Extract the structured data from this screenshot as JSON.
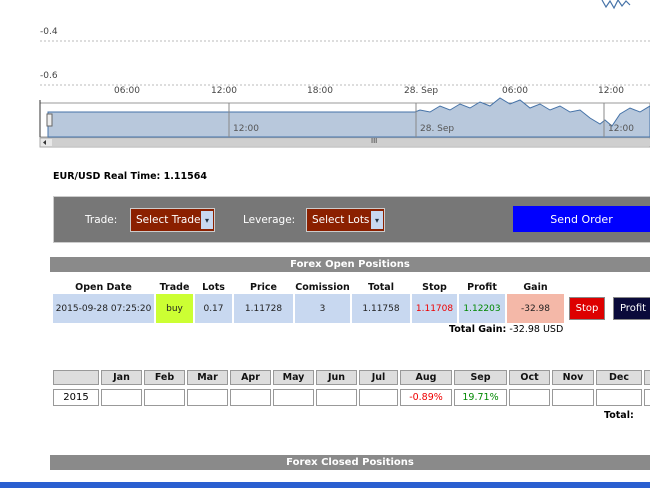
{
  "chart": {
    "y_labels": [
      "-0.4",
      "-0.6"
    ],
    "x_labels": [
      "06:00",
      "12:00",
      "18:00",
      "28. Sep",
      "06:00",
      "12:00"
    ],
    "navigator_labels": [
      "12:00",
      "28. Sep",
      "12:00"
    ],
    "scrollbar_grip": "III"
  },
  "realtime": {
    "text": "EUR/USD Real Time: 1.11564"
  },
  "form": {
    "trade_label": "Trade:",
    "trade_select": "Select Trade",
    "leverage_label": "Leverage:",
    "leverage_select": "Select Lots",
    "button": "Send Order"
  },
  "open_positions": {
    "title": "Forex Open Positions",
    "columns": [
      "Open Date",
      "Trade",
      "Lots",
      "Price",
      "Comission",
      "Total",
      "Stop",
      "Profit",
      "Gain"
    ],
    "rows": [
      [
        "2015-09-28 07:25:20",
        "buy",
        "0.17",
        "1.11728",
        "3",
        "1.11758",
        "1.11708",
        "1.12203",
        "-32.98",
        "Stop",
        "Profit"
      ]
    ],
    "total_gain_label": "Total Gain:",
    "total_gain_value": "-32.98 USD"
  },
  "monthly": {
    "columns": [
      "Jan",
      "Feb",
      "Mar",
      "Apr",
      "May",
      "Jun",
      "Jul",
      "Aug",
      "Sep",
      "Oct",
      "Nov",
      "Dec"
    ],
    "rows": [
      {
        "year": "2015",
        "values": [
          null,
          null,
          null,
          null,
          null,
          null,
          null,
          "-0.89%",
          "19.71%",
          null,
          null,
          null
        ]
      }
    ],
    "total_label": "Total:"
  },
  "closed_positions": {
    "title": "Forex Closed Positions"
  }
}
